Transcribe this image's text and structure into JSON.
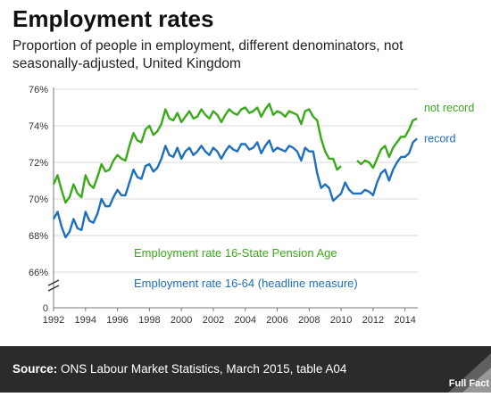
{
  "header": {
    "title": "Employment rates",
    "subtitle": "Proportion of people in employment, different denominators, not seasonally-adjusted, United Kingdom"
  },
  "footer": {
    "source_label": "Source:",
    "source_text": "ONS Labour Market Statistics, March 2015, table A04",
    "logo_text": "Full Fact"
  },
  "colors": {
    "green": "#3aaa1a",
    "blue": "#1f6fbf",
    "grid": "#d9d9d9",
    "footer_bg": "#2b2b2b"
  },
  "chart_data": {
    "type": "line",
    "title": "Employment rates",
    "xlabel": "",
    "ylabel": "",
    "xlim": [
      1992,
      2014.8
    ],
    "ylim": [
      66,
      76
    ],
    "y_ticks": [
      "76%",
      "74%",
      "72%",
      "70%",
      "68%",
      "66%"
    ],
    "y_tick_values": [
      76,
      74,
      72,
      70,
      68,
      66
    ],
    "y_zero_label": "0",
    "x_ticks": [
      "1992",
      "1994",
      "1996",
      "1998",
      "2000",
      "2002",
      "2004",
      "2006",
      "2008",
      "2010",
      "2012",
      "2014"
    ],
    "x_tick_values": [
      1992,
      1994,
      1996,
      1998,
      2000,
      2002,
      2004,
      2006,
      2008,
      2010,
      2012,
      2014
    ],
    "grid": true,
    "axis_break": true,
    "annotations": [
      "Employment rate 16-State Pension Age",
      "Employment rate 16-64 (headline measure)"
    ],
    "series": [
      {
        "name": "not record",
        "color": "#3aaa1a",
        "segments": [
          {
            "x": [
              1992.0,
              1992.25,
              1992.5,
              1992.75,
              1993.0,
              1993.25,
              1993.5,
              1993.75,
              1994.0,
              1994.25,
              1994.5,
              1994.75,
              1995.0,
              1995.25,
              1995.5,
              1995.75,
              1996.0,
              1996.25,
              1996.5,
              1996.75,
              1997.0,
              1997.25,
              1997.5,
              1997.75,
              1998.0,
              1998.25,
              1998.5,
              1998.75,
              1999.0,
              1999.25,
              1999.5,
              1999.75,
              2000.0,
              2000.25,
              2000.5,
              2000.75,
              2001.0,
              2001.25,
              2001.5,
              2001.75,
              2002.0,
              2002.25,
              2002.5,
              2002.75,
              2003.0,
              2003.25,
              2003.5,
              2003.75,
              2004.0,
              2004.25,
              2004.5,
              2004.75,
              2005.0,
              2005.25,
              2005.5,
              2005.75,
              2006.0,
              2006.25,
              2006.5,
              2006.75,
              2007.0,
              2007.25,
              2007.5,
              2007.75,
              2008.0,
              2008.25,
              2008.5,
              2008.75,
              2009.0,
              2009.25,
              2009.5,
              2009.75,
              2010.0
            ],
            "y": [
              70.8,
              71.3,
              70.5,
              69.8,
              70.1,
              70.8,
              70.3,
              70.1,
              71.3,
              70.8,
              70.6,
              71.2,
              71.9,
              71.5,
              71.6,
              72.1,
              72.4,
              72.2,
              72.1,
              72.9,
              73.6,
              73.2,
              73.1,
              73.8,
              74.0,
              73.5,
              73.7,
              74.1,
              74.9,
              74.4,
              74.3,
              74.7,
              74.2,
              74.5,
              74.8,
              74.4,
              74.5,
              74.9,
              74.6,
              74.4,
              74.8,
              74.6,
              74.2,
              74.6,
              74.9,
              74.7,
              74.6,
              74.9,
              75.0,
              74.7,
              74.8,
              75.0,
              74.5,
              74.9,
              75.2,
              74.6,
              74.8,
              74.7,
              74.5,
              74.8,
              74.7,
              74.6,
              74.1,
              74.8,
              74.9,
              74.5,
              74.3,
              73.3,
              72.6,
              72.2,
              72.2,
              71.6,
              71.8
            ]
          },
          {
            "x": [
              2011.0,
              2011.25,
              2011.5,
              2011.75,
              2012.0,
              2012.25,
              2012.5,
              2012.75,
              2013.0,
              2013.25,
              2013.5,
              2013.75,
              2014.0,
              2014.25,
              2014.5,
              2014.75
            ],
            "y": [
              72.1,
              71.9,
              72.1,
              72.0,
              71.7,
              72.2,
              72.7,
              72.9,
              72.3,
              72.8,
              73.1,
              73.4,
              73.4,
              73.8,
              74.3,
              74.4
            ]
          }
        ]
      },
      {
        "name": "record",
        "color": "#1f6fbf",
        "segments": [
          {
            "x": [
              1992.0,
              1992.25,
              1992.5,
              1992.75,
              1993.0,
              1993.25,
              1993.5,
              1993.75,
              1994.0,
              1994.25,
              1994.5,
              1994.75,
              1995.0,
              1995.25,
              1995.5,
              1995.75,
              1996.0,
              1996.25,
              1996.5,
              1996.75,
              1997.0,
              1997.25,
              1997.5,
              1997.75,
              1998.0,
              1998.25,
              1998.5,
              1998.75,
              1999.0,
              1999.25,
              1999.5,
              1999.75,
              2000.0,
              2000.25,
              2000.5,
              2000.75,
              2001.0,
              2001.25,
              2001.5,
              2001.75,
              2002.0,
              2002.25,
              2002.5,
              2002.75,
              2003.0,
              2003.25,
              2003.5,
              2003.75,
              2004.0,
              2004.25,
              2004.5,
              2004.75,
              2005.0,
              2005.25,
              2005.5,
              2005.75,
              2006.0,
              2006.25,
              2006.5,
              2006.75,
              2007.0,
              2007.25,
              2007.5,
              2007.75,
              2008.0,
              2008.25,
              2008.5,
              2008.75,
              2009.0,
              2009.25,
              2009.5,
              2009.75,
              2010.0,
              2010.25,
              2010.5,
              2010.75,
              2011.0,
              2011.25,
              2011.5,
              2011.75,
              2012.0,
              2012.25,
              2012.5,
              2012.75,
              2013.0,
              2013.25,
              2013.5,
              2013.75,
              2014.0,
              2014.25,
              2014.5,
              2014.75
            ],
            "y": [
              68.9,
              69.3,
              68.5,
              67.9,
              68.2,
              68.9,
              68.4,
              68.3,
              69.3,
              68.8,
              68.7,
              69.2,
              70.0,
              69.6,
              69.6,
              70.1,
              70.5,
              70.2,
              70.2,
              70.9,
              71.6,
              71.2,
              71.1,
              71.8,
              71.9,
              71.5,
              71.7,
              72.2,
              72.9,
              72.4,
              72.3,
              72.8,
              72.2,
              72.6,
              72.8,
              72.4,
              72.6,
              72.9,
              72.6,
              72.4,
              72.8,
              72.6,
              72.2,
              72.6,
              72.9,
              72.7,
              72.6,
              73.0,
              73.0,
              72.7,
              72.8,
              73.1,
              72.5,
              72.9,
              73.2,
              72.6,
              72.8,
              72.7,
              72.6,
              72.9,
              72.8,
              72.6,
              72.1,
              72.8,
              72.6,
              72.6,
              71.4,
              70.6,
              70.8,
              70.6,
              69.9,
              70.1,
              70.3,
              70.9,
              70.5,
              70.3,
              70.3,
              70.3,
              70.5,
              70.4,
              70.2,
              70.9,
              71.4,
              71.6,
              71.0,
              71.6,
              72.0,
              72.3,
              72.3,
              72.5,
              73.1,
              73.3
            ]
          }
        ]
      }
    ]
  }
}
